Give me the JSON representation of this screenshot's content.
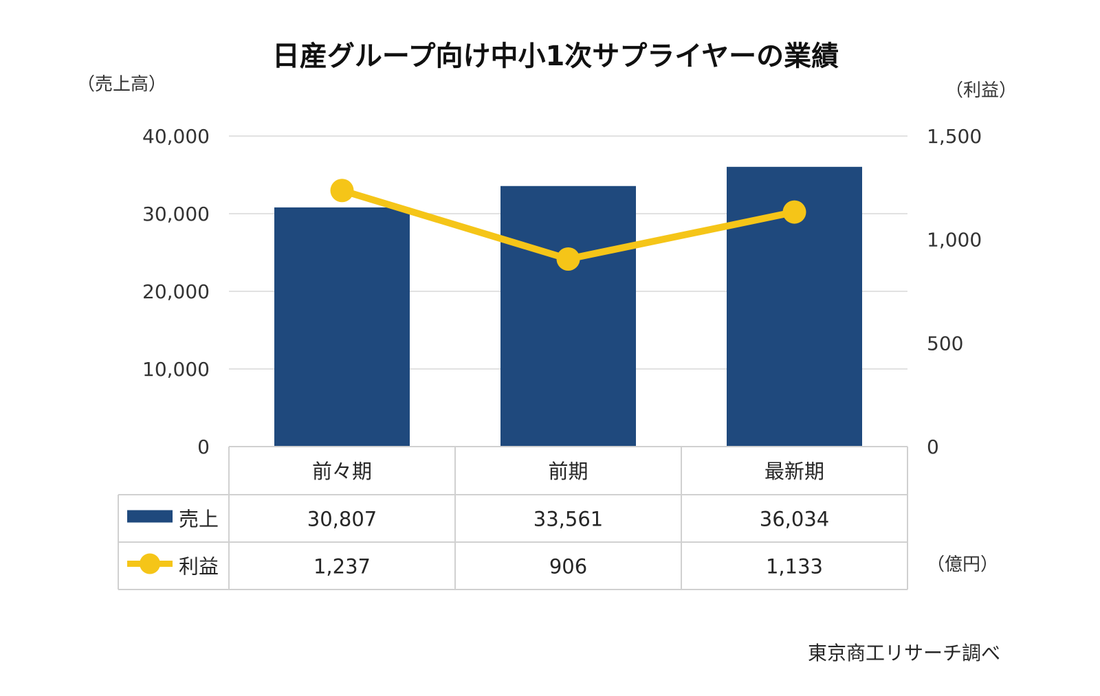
{
  "chart_data": {
    "type": "bar",
    "title": "日産グループ向け中小1次サプライヤーの業績",
    "categories": [
      "前々期",
      "前期",
      "最新期"
    ],
    "series": [
      {
        "name": "売上",
        "type": "bar",
        "axis": "left",
        "values": [
          30807,
          33561,
          36034
        ],
        "color": "#1f497d"
      },
      {
        "name": "利益",
        "type": "line",
        "axis": "right",
        "values": [
          1237,
          906,
          1133
        ],
        "color": "#f5c518"
      }
    ],
    "y_left": {
      "label": "（売上高）",
      "min": 0,
      "max": 40000,
      "ticks": [
        "0",
        "10,000",
        "20,000",
        "30,000",
        "40,000"
      ]
    },
    "y_right": {
      "label": "（利益）",
      "min": 0,
      "max": 1500,
      "ticks": [
        "0",
        "500",
        "1,000",
        "1,500"
      ]
    },
    "data_table": {
      "rows": [
        {
          "name": "売上",
          "values": [
            "30,807",
            "33,561",
            "36,034"
          ]
        },
        {
          "name": "利益",
          "values": [
            "1,237",
            "906",
            "1,133"
          ]
        }
      ]
    },
    "unit": "（億円）",
    "source": "東京商工リサーチ調べ",
    "grid": true
  }
}
